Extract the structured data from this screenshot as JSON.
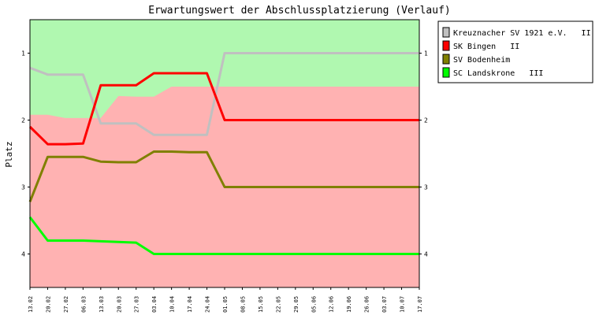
{
  "chart_data": {
    "type": "line",
    "title": "Erwartungswert der Abschlussplatzierung (Verlauf)",
    "ylabel": "Platz",
    "xlabel": "",
    "y_ticks": [
      "1",
      "2",
      "3",
      "4"
    ],
    "ylim": [
      4.5,
      0.5
    ],
    "y_inverted": true,
    "x_tick_labels": [
      "13.02",
      "20.02",
      "27.02",
      "06.03",
      "13.03",
      "20.03",
      "27.03",
      "03.04",
      "10.04",
      "17.04",
      "24.04",
      "01.05",
      "08.05",
      "15.05",
      "22.05",
      "29.05",
      "05.06",
      "12.06",
      "19.06",
      "26.06",
      "03.07",
      "10.07",
      "17.07"
    ],
    "x_tick_positions": [
      0,
      7,
      14,
      21,
      28,
      35,
      42,
      49,
      56,
      63,
      70,
      77,
      84,
      91,
      98,
      105,
      112,
      119,
      126,
      133,
      140,
      147,
      154
    ],
    "background_zones": [
      {
        "name": "green",
        "color": "#b0f8b0",
        "boundary": [
          [
            0,
            1.92
          ],
          [
            7,
            1.92
          ],
          [
            14,
            1.97
          ],
          [
            21,
            1.97
          ],
          [
            28,
            1.97
          ],
          [
            35,
            1.64
          ],
          [
            42,
            1.65
          ],
          [
            49,
            1.65
          ],
          [
            56,
            1.5
          ],
          [
            63,
            1.5
          ],
          [
            70,
            1.5
          ],
          [
            77,
            1.5
          ],
          [
            154,
            1.5
          ]
        ]
      },
      {
        "name": "red",
        "color": "#ffb2b2"
      }
    ],
    "series": [
      {
        "name": "Kreuznacher SV 1921 e.V.   II",
        "color": "#c0c0c0",
        "x": [
          0,
          7,
          14,
          21,
          28,
          35,
          42,
          49,
          56,
          63,
          70,
          77,
          154
        ],
        "y": [
          1.22,
          1.32,
          1.32,
          1.32,
          2.05,
          2.05,
          2.05,
          2.22,
          2.22,
          2.22,
          2.22,
          1.0,
          1.0
        ]
      },
      {
        "name": "SK Bingen   II",
        "color": "#ff0000",
        "x": [
          0,
          7,
          14,
          21,
          28,
          35,
          42,
          49,
          56,
          63,
          70,
          77,
          154
        ],
        "y": [
          2.1,
          2.36,
          2.36,
          2.35,
          1.48,
          1.48,
          1.48,
          1.3,
          1.3,
          1.3,
          1.3,
          2.0,
          2.0
        ]
      },
      {
        "name": "SV Bodenheim",
        "color": "#808000",
        "x": [
          0,
          7,
          14,
          21,
          28,
          35,
          42,
          49,
          56,
          63,
          70,
          77,
          154
        ],
        "y": [
          3.22,
          2.55,
          2.55,
          2.55,
          2.62,
          2.63,
          2.63,
          2.47,
          2.47,
          2.48,
          2.48,
          3.0,
          3.0
        ]
      },
      {
        "name": "SC Landskrone   III",
        "color": "#00ff00",
        "x": [
          0,
          7,
          14,
          21,
          28,
          35,
          42,
          49,
          56,
          63,
          70,
          77,
          154
        ],
        "y": [
          3.45,
          3.8,
          3.8,
          3.8,
          3.81,
          3.82,
          3.83,
          4.0,
          4.0,
          4.0,
          4.0,
          4.0,
          4.0
        ]
      }
    ],
    "legend_position": "right",
    "grid": false
  }
}
